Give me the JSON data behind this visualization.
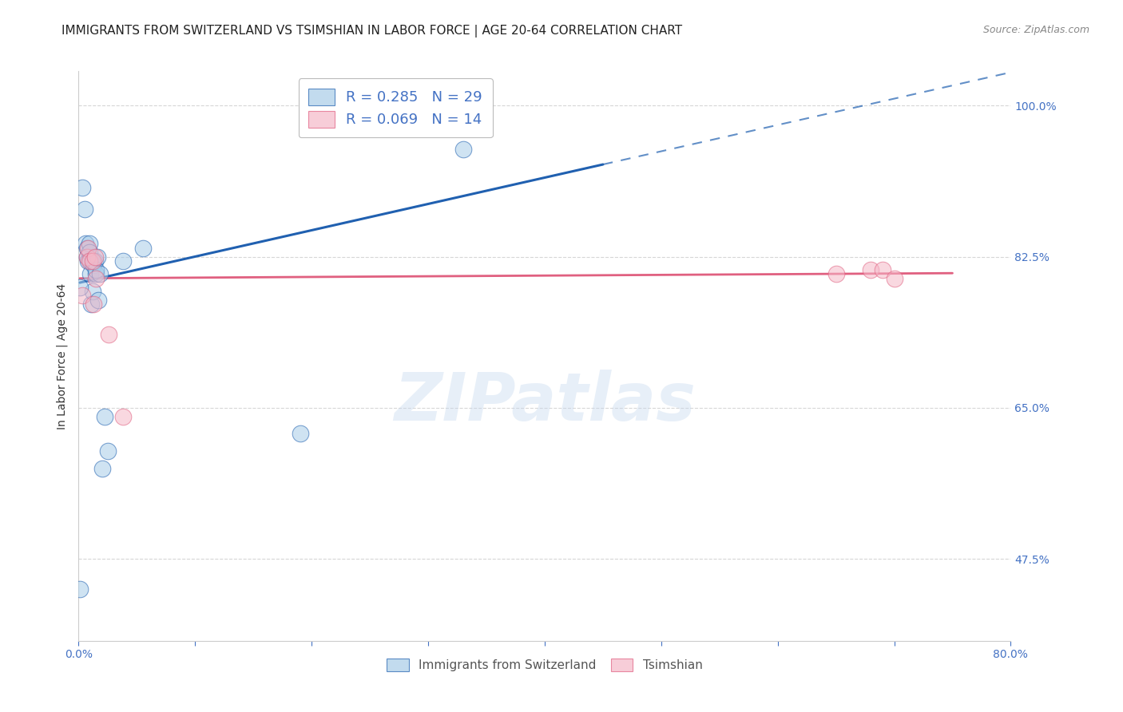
{
  "title": "IMMIGRANTS FROM SWITZERLAND VS TSIMSHIAN IN LABOR FORCE | AGE 20-64 CORRELATION CHART",
  "source": "Source: ZipAtlas.com",
  "ylabel": "In Labor Force | Age 20-64",
  "xlim": [
    0.0,
    0.8
  ],
  "ylim": [
    0.38,
    1.04
  ],
  "xticks": [
    0.0,
    0.1,
    0.2,
    0.3,
    0.4,
    0.5,
    0.6,
    0.7,
    0.8
  ],
  "xticklabels": [
    "0.0%",
    "",
    "",
    "",
    "",
    "",
    "",
    "",
    "80.0%"
  ],
  "yticks": [
    0.475,
    0.65,
    0.825,
    1.0
  ],
  "yticklabels": [
    "47.5%",
    "65.0%",
    "82.5%",
    "100.0%"
  ],
  "legend_blue_r": "R = 0.285",
  "legend_blue_n": "N = 29",
  "legend_pink_r": "R = 0.069",
  "legend_pink_n": "N = 14",
  "blue_color": "#a8cce8",
  "pink_color": "#f5b8c8",
  "blue_line_color": "#2060b0",
  "pink_line_color": "#e06080",
  "blue_scatter_x": [
    0.001,
    0.003,
    0.005,
    0.006,
    0.007,
    0.007,
    0.008,
    0.009,
    0.009,
    0.01,
    0.01,
    0.011,
    0.012,
    0.013,
    0.013,
    0.014,
    0.015,
    0.015,
    0.016,
    0.017,
    0.018,
    0.022,
    0.025,
    0.038,
    0.055,
    0.19,
    0.33,
    0.001,
    0.02
  ],
  "blue_scatter_y": [
    0.44,
    0.905,
    0.88,
    0.84,
    0.835,
    0.825,
    0.82,
    0.84,
    0.83,
    0.805,
    0.82,
    0.77,
    0.785,
    0.815,
    0.82,
    0.82,
    0.805,
    0.81,
    0.825,
    0.775,
    0.805,
    0.64,
    0.6,
    0.82,
    0.835,
    0.62,
    0.95,
    0.79,
    0.58
  ],
  "pink_scatter_x": [
    0.003,
    0.007,
    0.008,
    0.009,
    0.012,
    0.013,
    0.014,
    0.015,
    0.026,
    0.038,
    0.65,
    0.68,
    0.69,
    0.7
  ],
  "pink_scatter_y": [
    0.78,
    0.825,
    0.835,
    0.82,
    0.82,
    0.77,
    0.825,
    0.8,
    0.735,
    0.64,
    0.805,
    0.81,
    0.81,
    0.8
  ],
  "blue_line_start_x": 0.001,
  "blue_line_start_y": 0.795,
  "blue_line_solid_end_x": 0.45,
  "blue_line_end_x": 0.8,
  "blue_slope": 0.305,
  "pink_line_start_x": 0.001,
  "pink_line_start_y": 0.8,
  "pink_line_end_x": 0.75,
  "pink_slope": 0.008,
  "watermark": "ZIPatlas",
  "background_color": "#ffffff",
  "grid_color": "#cccccc",
  "title_color": "#222222",
  "source_color": "#888888",
  "tick_label_color": "#4472c4"
}
